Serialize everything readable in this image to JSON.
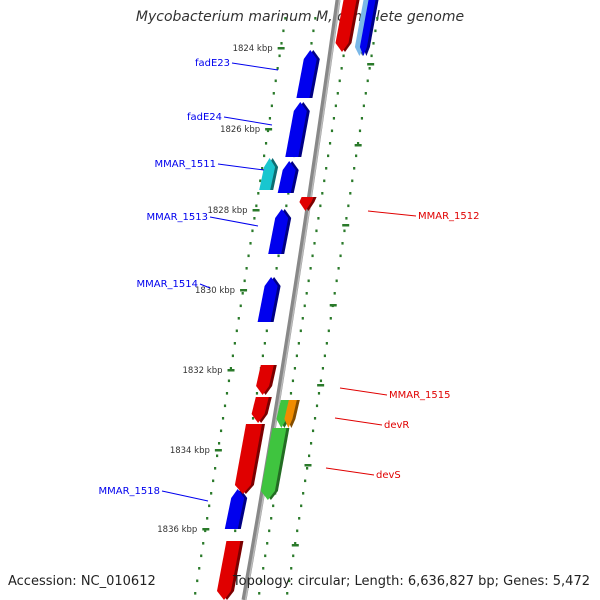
{
  "title": "Mycobacterium marinum M, complete genome",
  "accession": "Accession: NC_010612",
  "topology": "Topology: circular; Length: 6,636,827 bp; Genes: 5,472",
  "colors": {
    "forward": "#0000ee",
    "reverse": "#e00000",
    "cyan": "#19c6cf",
    "green": "#3fc43f",
    "orange": "#f08c00",
    "lightblue": "#7ab8e8",
    "backbone": "#888888",
    "tick": "#2a7a2a",
    "scale_text": "#333333"
  },
  "scale_ticks": [
    "1824 kbp",
    "1826 kbp",
    "1828 kbp",
    "1830 kbp",
    "1832 kbp",
    "1834 kbp",
    "1836 kbp"
  ],
  "genes_forward": [
    {
      "name": "fadE23",
      "color": "forward"
    },
    {
      "name": "fadE24",
      "color": "forward"
    },
    {
      "name": "MMAR_1511",
      "color": "forward"
    },
    {
      "name": "MMAR_1513",
      "color": "forward"
    },
    {
      "name": "MMAR_1514",
      "color": "forward"
    },
    {
      "name": "MMAR_1518",
      "color": "forward"
    }
  ],
  "genes_reverse": [
    {
      "name": "MMAR_1512",
      "color": "reverse"
    },
    {
      "name": "MMAR_1515",
      "color": "reverse"
    },
    {
      "name": "devR",
      "color": "reverse"
    },
    {
      "name": "devS",
      "color": "reverse"
    }
  ]
}
